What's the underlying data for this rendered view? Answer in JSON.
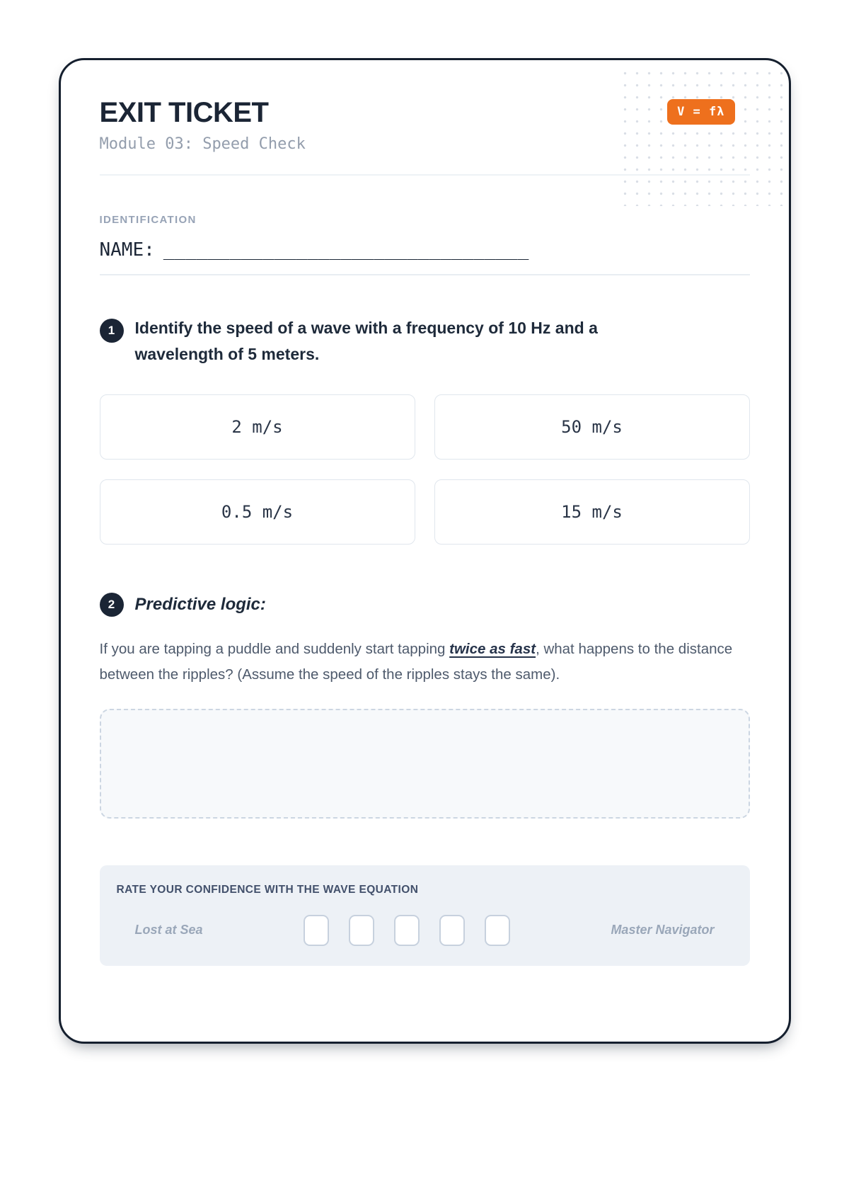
{
  "header": {
    "title": "EXIT TICKET",
    "subtitle": "Module 03: Speed Check",
    "formula_badge": "V = fλ"
  },
  "identification": {
    "section_label": "IDENTIFICATION",
    "name_label": "NAME:",
    "name_line": "_________________________________"
  },
  "q1": {
    "number": "1",
    "prompt": "Identify the speed of a wave with a frequency of 10 Hz and a wavelength of 5 meters.",
    "options": [
      "2 m/s",
      "50 m/s",
      "0.5 m/s",
      "15 m/s"
    ]
  },
  "q2": {
    "number": "2",
    "title": "Predictive logic:",
    "body_before": "If you are tapping a puddle and suddenly start tapping ",
    "body_emphasis": "twice as fast",
    "body_after": ", what happens to the distance between the ripples? (Assume the speed of the ripples stays the same)."
  },
  "confidence": {
    "heading": "RATE YOUR CONFIDENCE WITH THE WAVE EQUATION",
    "low_label": "Lost at Sea",
    "high_label": "Master Navigator",
    "levels": 5
  },
  "colors": {
    "accent_orange": "#EE701D",
    "navy": "#1B2535"
  }
}
